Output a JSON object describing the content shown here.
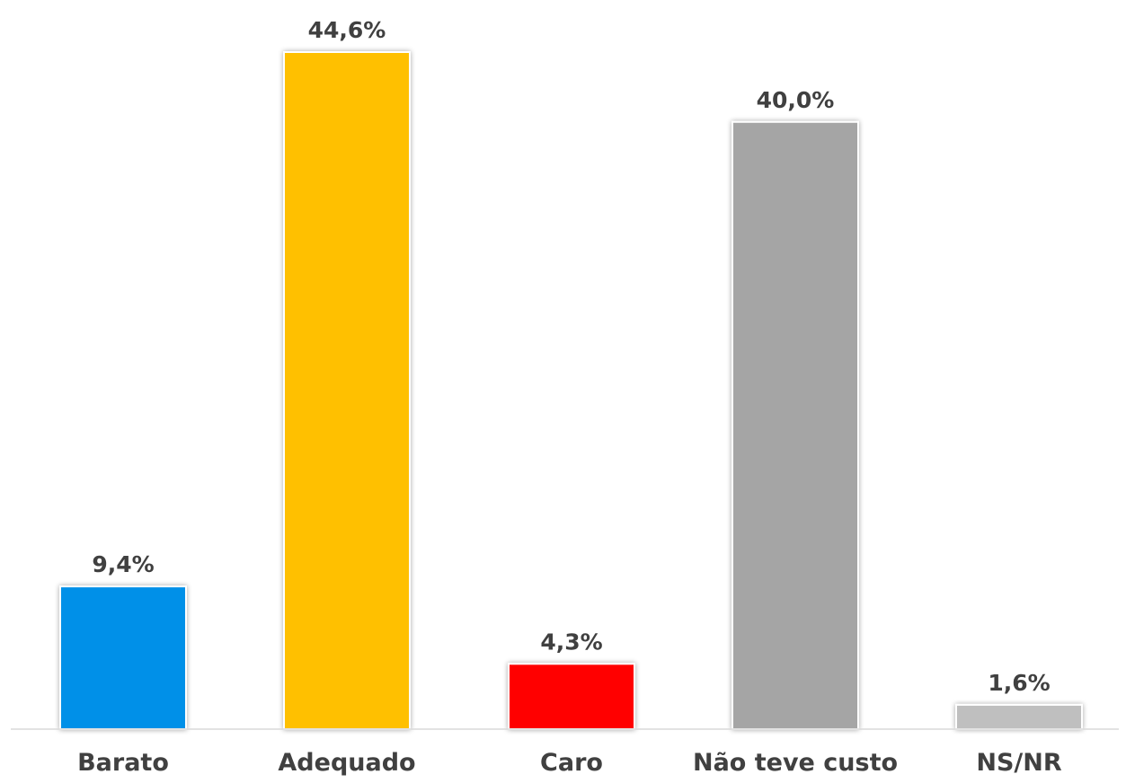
{
  "chart_data": {
    "type": "bar",
    "categories": [
      "Barato",
      "Adequado",
      "Caro",
      "Não teve custo",
      "NS/NR"
    ],
    "values": [
      9.4,
      44.6,
      4.3,
      40.0,
      1.6
    ],
    "data_labels": [
      "9,4%",
      "44,6%",
      "4,3%",
      "40,0%",
      "1,6%"
    ],
    "colors": [
      "#0090E8",
      "#FFC000",
      "#FF0000",
      "#A5A5A5",
      "#BFBFBF"
    ],
    "title": "",
    "xlabel": "",
    "ylabel": "",
    "ylim": [
      0,
      44.6
    ],
    "grid": false,
    "legend": "none",
    "unit": "%"
  }
}
